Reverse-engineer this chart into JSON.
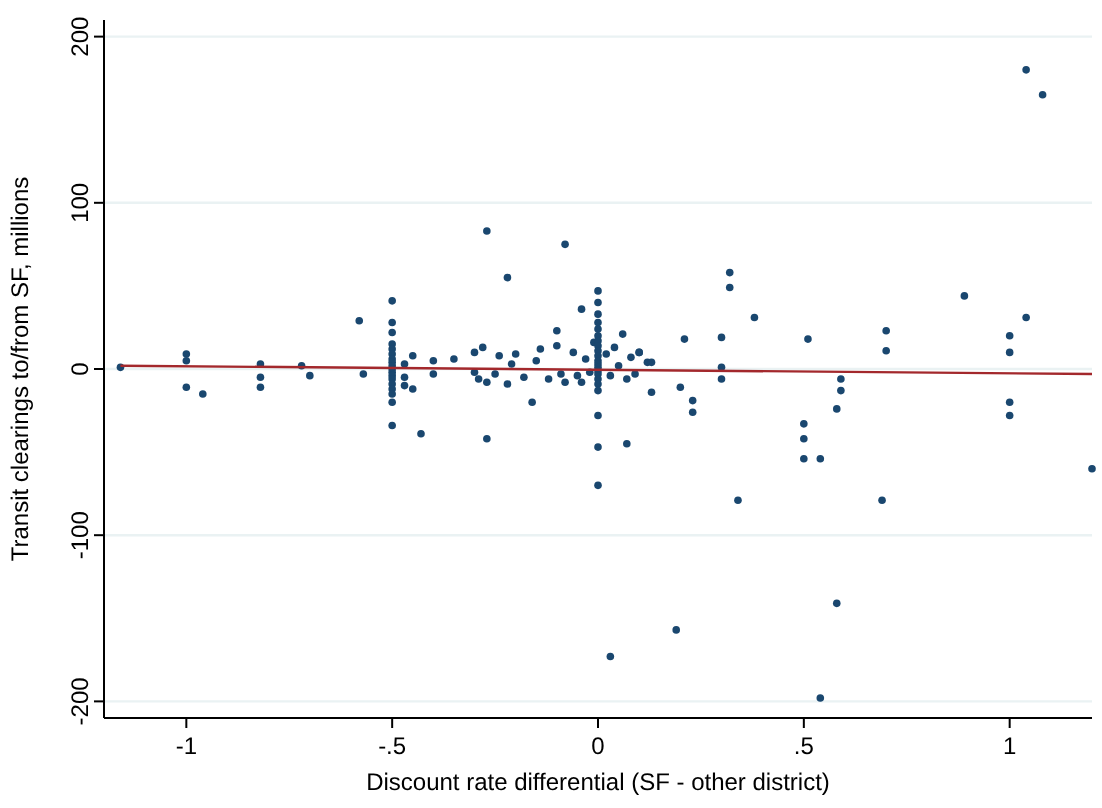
{
  "chart_data": {
    "type": "scatter",
    "xlabel": "Discount rate differential (SF - other district)",
    "ylabel": "Transit clearings to/from SF, millions",
    "xlim": [
      -1.2,
      1.2
    ],
    "ylim": [
      -210,
      210
    ],
    "xticks": [
      -1,
      {
        "value": -0.5,
        "label": "-.5"
      },
      0,
      {
        "value": 0.5,
        "label": ".5"
      },
      1
    ],
    "yticks": [
      -200,
      -100,
      0,
      100,
      200
    ],
    "grid": "y",
    "series": [
      {
        "color": "#1a476f",
        "marker": "circle",
        "x": [
          1.04,
          1.08,
          0.32,
          0.32,
          0.38,
          0.89,
          1.04,
          1.0,
          1.0,
          0.7,
          0.7,
          0.51,
          0.3,
          -0.27,
          -0.08,
          -0.22,
          0,
          0,
          -0.04,
          -0.1,
          -0.5,
          -0.5,
          -0.58,
          -1.16,
          -1,
          -1,
          -1,
          -0.96,
          -0.82,
          -0.82,
          -0.82,
          -0.72,
          -0.7,
          -0.57,
          -0.5,
          -0.43,
          -0.27,
          -0.16,
          0,
          0,
          0,
          0.07,
          0.23,
          0.23,
          0.2,
          0.13,
          0.3,
          0.3,
          0.5,
          0.5,
          0.5,
          0.54,
          0.58,
          0.59,
          0.59,
          1.0,
          1.0,
          1.2,
          0.34,
          0.69,
          0.21,
          0.12,
          0.13,
          0.1,
          0.58,
          0.19,
          0.03,
          0.54,
          -0.5,
          -0.5,
          -0.5,
          -0.5,
          -0.5,
          -0.5,
          -0.5,
          -0.5,
          -0.5,
          -0.5,
          -0.5,
          -0.5,
          -0.5,
          -0.5,
          -0.5,
          -0.47,
          -0.47,
          -0.47,
          -0.45,
          -0.45,
          -0.4,
          -0.4,
          -0.35,
          -0.3,
          -0.3,
          -0.29,
          -0.28,
          -0.27,
          -0.25,
          -0.24,
          -0.22,
          -0.21,
          -0.2,
          -0.18,
          -0.15,
          -0.14,
          -0.12,
          -0.1,
          -0.09,
          -0.08,
          -0.06,
          -0.05,
          -0.04,
          -0.03,
          -0.02,
          -0.01,
          0,
          0,
          0,
          0,
          0,
          0,
          0,
          0,
          0,
          0,
          0,
          0,
          0,
          0,
          0,
          0,
          0.02,
          0.03,
          0.04,
          0.05,
          0.06,
          0.07,
          0.08,
          0.09,
          0.1
        ],
        "values": [
          180,
          165,
          58,
          49,
          31,
          44,
          31,
          20,
          10,
          23,
          11,
          18,
          19,
          83,
          75,
          55,
          47,
          40,
          36,
          23,
          41,
          28,
          29,
          1,
          9,
          -11,
          5,
          -15,
          3,
          -5,
          -11,
          2,
          -4,
          -3,
          -34,
          -39,
          -42,
          -20,
          -28,
          -47,
          -70,
          -45,
          -26,
          -19,
          -11,
          -14,
          -6,
          1,
          -33,
          -42,
          -54,
          -54,
          -24,
          -13,
          -6,
          -20,
          -28,
          -60,
          -79,
          -79,
          18,
          4,
          4,
          10,
          -141,
          -157,
          -173,
          -198,
          22,
          15,
          12,
          9,
          6,
          4,
          2,
          0,
          -2,
          -4,
          -6,
          -9,
          -12,
          -15,
          -20,
          3,
          -5,
          -10,
          8,
          -12,
          5,
          -3,
          6,
          10,
          -2,
          -6,
          13,
          -8,
          -3,
          8,
          -9,
          3,
          9,
          -5,
          5,
          12,
          -6,
          14,
          -3,
          -8,
          10,
          -4,
          -8,
          6,
          -2,
          16,
          33,
          28,
          24,
          20,
          17,
          14,
          11,
          8,
          5,
          3,
          1,
          -1,
          -3,
          -6,
          -9,
          -13,
          9,
          -4,
          13,
          2,
          21,
          -6,
          7,
          -3,
          10
        ]
      },
      {
        "type": "line",
        "color": "#a3282c",
        "marker": "none",
        "x": [
          -1.16,
          1.2
        ],
        "values": [
          2,
          -3
        ]
      }
    ]
  }
}
